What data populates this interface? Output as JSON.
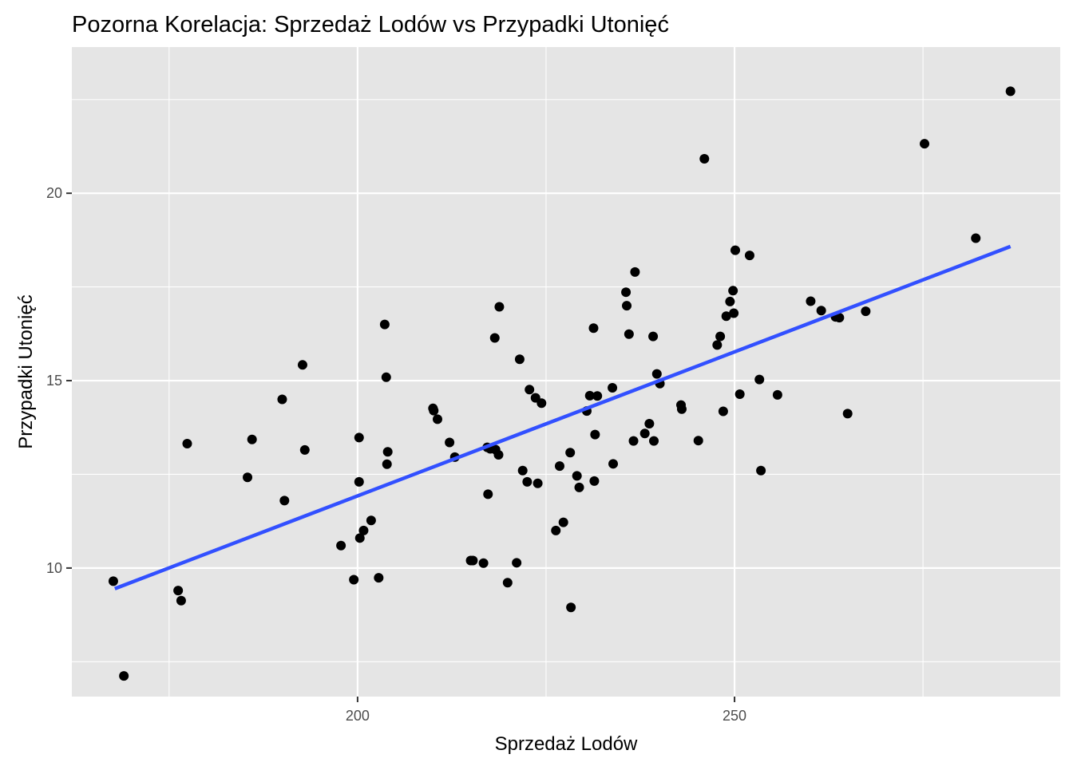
{
  "chart_data": {
    "type": "scatter",
    "title": "Pozorna Korelacja: Sprzedaż Lodów vs Przypadki Utonięć",
    "xlabel": "Sprzedaż Lodów",
    "ylabel": "Przypadki Utonięć",
    "xlim": [
      162.1,
      293.2
    ],
    "ylim": [
      6.57,
      23.9
    ],
    "x_ticks": [
      200,
      250
    ],
    "y_ticks": [
      10,
      15,
      20
    ],
    "grid": true,
    "background": "#e5e5e5",
    "point_color": "#000000",
    "trend_color": "#3250ff",
    "trend_line": {
      "x": [
        167.8,
        286.6
      ],
      "y": [
        9.45,
        18.58
      ]
    },
    "points": [
      {
        "x": 167.6,
        "y": 9.65
      },
      {
        "x": 169.0,
        "y": 7.12
      },
      {
        "x": 176.2,
        "y": 9.4
      },
      {
        "x": 176.6,
        "y": 9.13
      },
      {
        "x": 177.4,
        "y": 13.32
      },
      {
        "x": 185.4,
        "y": 12.42
      },
      {
        "x": 186.0,
        "y": 13.43
      },
      {
        "x": 190.0,
        "y": 14.5
      },
      {
        "x": 190.3,
        "y": 11.8
      },
      {
        "x": 192.7,
        "y": 15.42
      },
      {
        "x": 193.0,
        "y": 13.15
      },
      {
        "x": 197.8,
        "y": 10.6
      },
      {
        "x": 199.5,
        "y": 9.69
      },
      {
        "x": 200.2,
        "y": 13.48
      },
      {
        "x": 200.2,
        "y": 12.3
      },
      {
        "x": 200.3,
        "y": 10.8
      },
      {
        "x": 200.8,
        "y": 11.0
      },
      {
        "x": 201.8,
        "y": 11.27
      },
      {
        "x": 202.8,
        "y": 9.74
      },
      {
        "x": 203.6,
        "y": 16.5
      },
      {
        "x": 203.8,
        "y": 15.09
      },
      {
        "x": 203.9,
        "y": 12.77
      },
      {
        "x": 204.0,
        "y": 13.1
      },
      {
        "x": 210.0,
        "y": 14.26
      },
      {
        "x": 210.1,
        "y": 14.2
      },
      {
        "x": 210.6,
        "y": 13.97
      },
      {
        "x": 212.2,
        "y": 13.35
      },
      {
        "x": 212.9,
        "y": 12.96
      },
      {
        "x": 215.0,
        "y": 10.2
      },
      {
        "x": 215.3,
        "y": 10.2
      },
      {
        "x": 216.7,
        "y": 10.13
      },
      {
        "x": 217.2,
        "y": 13.22
      },
      {
        "x": 217.3,
        "y": 11.97
      },
      {
        "x": 217.6,
        "y": 13.18
      },
      {
        "x": 218.2,
        "y": 16.14
      },
      {
        "x": 218.3,
        "y": 13.16
      },
      {
        "x": 218.7,
        "y": 13.02
      },
      {
        "x": 218.8,
        "y": 16.97
      },
      {
        "x": 219.9,
        "y": 9.61
      },
      {
        "x": 221.1,
        "y": 10.14
      },
      {
        "x": 221.5,
        "y": 15.57
      },
      {
        "x": 221.9,
        "y": 12.6
      },
      {
        "x": 222.5,
        "y": 12.3
      },
      {
        "x": 222.8,
        "y": 14.76
      },
      {
        "x": 223.6,
        "y": 14.54
      },
      {
        "x": 223.9,
        "y": 12.26
      },
      {
        "x": 224.4,
        "y": 14.4
      },
      {
        "x": 226.3,
        "y": 11.0
      },
      {
        "x": 226.8,
        "y": 12.72
      },
      {
        "x": 227.3,
        "y": 11.22
      },
      {
        "x": 228.2,
        "y": 13.08
      },
      {
        "x": 228.3,
        "y": 8.95
      },
      {
        "x": 229.1,
        "y": 12.46
      },
      {
        "x": 229.4,
        "y": 12.15
      },
      {
        "x": 230.4,
        "y": 14.19
      },
      {
        "x": 230.8,
        "y": 14.6
      },
      {
        "x": 231.3,
        "y": 16.4
      },
      {
        "x": 231.4,
        "y": 12.32
      },
      {
        "x": 231.5,
        "y": 13.56
      },
      {
        "x": 231.8,
        "y": 14.59
      },
      {
        "x": 233.8,
        "y": 14.81
      },
      {
        "x": 233.9,
        "y": 12.78
      },
      {
        "x": 235.6,
        "y": 17.36
      },
      {
        "x": 235.7,
        "y": 17.0
      },
      {
        "x": 236.0,
        "y": 16.24
      },
      {
        "x": 236.6,
        "y": 13.39
      },
      {
        "x": 236.8,
        "y": 17.9
      },
      {
        "x": 238.1,
        "y": 13.59
      },
      {
        "x": 238.7,
        "y": 13.85
      },
      {
        "x": 239.2,
        "y": 16.18
      },
      {
        "x": 239.3,
        "y": 13.39
      },
      {
        "x": 239.7,
        "y": 15.18
      },
      {
        "x": 240.1,
        "y": 14.92
      },
      {
        "x": 242.9,
        "y": 14.35
      },
      {
        "x": 243.0,
        "y": 14.24
      },
      {
        "x": 245.2,
        "y": 13.4
      },
      {
        "x": 246.0,
        "y": 20.92
      },
      {
        "x": 247.7,
        "y": 15.95
      },
      {
        "x": 248.1,
        "y": 16.18
      },
      {
        "x": 248.5,
        "y": 14.18
      },
      {
        "x": 248.9,
        "y": 16.72
      },
      {
        "x": 249.4,
        "y": 17.11
      },
      {
        "x": 249.8,
        "y": 17.4
      },
      {
        "x": 249.9,
        "y": 16.8
      },
      {
        "x": 250.1,
        "y": 18.48
      },
      {
        "x": 250.7,
        "y": 14.64
      },
      {
        "x": 252.0,
        "y": 18.34
      },
      {
        "x": 253.3,
        "y": 15.03
      },
      {
        "x": 253.5,
        "y": 12.6
      },
      {
        "x": 255.7,
        "y": 14.62
      },
      {
        "x": 260.1,
        "y": 17.12
      },
      {
        "x": 261.5,
        "y": 16.87
      },
      {
        "x": 263.4,
        "y": 16.7
      },
      {
        "x": 263.9,
        "y": 16.68
      },
      {
        "x": 265.0,
        "y": 14.12
      },
      {
        "x": 267.4,
        "y": 16.85
      },
      {
        "x": 275.2,
        "y": 21.32
      },
      {
        "x": 282.0,
        "y": 18.8
      },
      {
        "x": 286.6,
        "y": 22.72
      }
    ]
  }
}
